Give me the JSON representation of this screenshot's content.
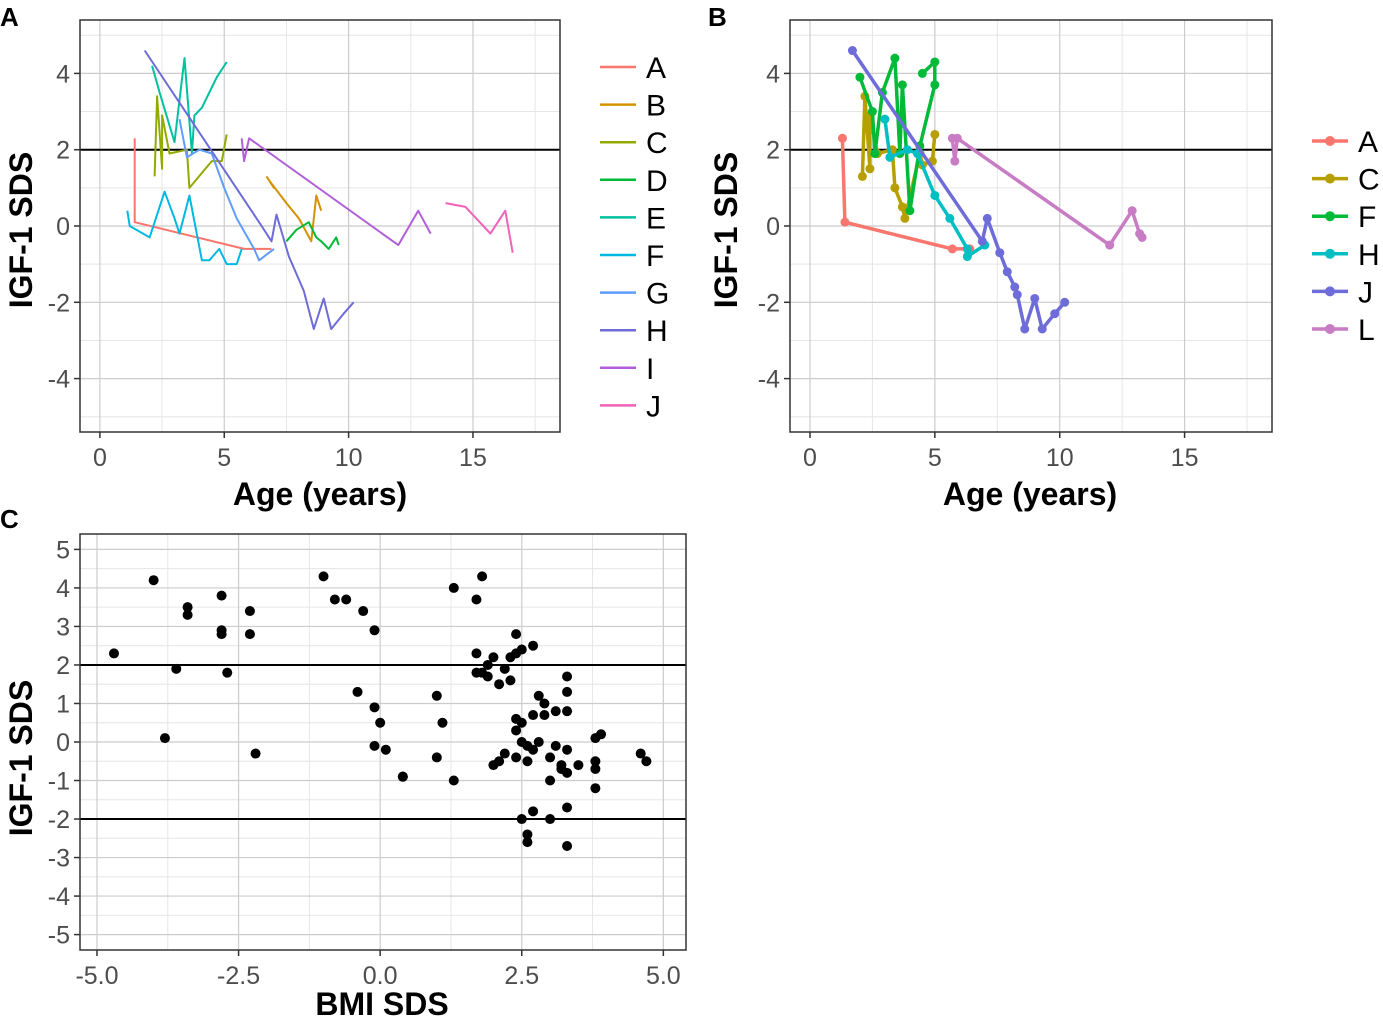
{
  "chart_data": [
    {
      "panel": "A",
      "type": "line",
      "xlabel": "Age (years)",
      "ylabel": "IGF-1 SDS",
      "xlim": [
        -0.8,
        18.5
      ],
      "ylim": [
        -5.4,
        5.4
      ],
      "xticks": [
        0,
        5,
        10,
        15
      ],
      "yticks": [
        -4,
        -2,
        0,
        2,
        4
      ],
      "grid": true,
      "hlines": [
        2
      ],
      "legend": "right",
      "series": [
        {
          "name": "A",
          "color": "#F8766D",
          "points": [
            [
              1.4,
              2.3
            ],
            [
              1.4,
              0.1
            ],
            [
              5.8,
              -0.6
            ],
            [
              6.9,
              -0.6
            ]
          ]
        },
        {
          "name": "B",
          "color": "#D39200",
          "points": [
            [
              6.7,
              1.3
            ],
            [
              7.0,
              1.0
            ],
            [
              6.8,
              1.2
            ],
            [
              7.5,
              0.6
            ],
            [
              8.0,
              0.2
            ],
            [
              8.5,
              -0.4
            ],
            [
              8.7,
              0.8
            ],
            [
              8.9,
              0.4
            ]
          ]
        },
        {
          "name": "C",
          "color": "#93AA00",
          "points": [
            [
              2.2,
              1.3
            ],
            [
              2.3,
              3.4
            ],
            [
              2.5,
              1.5
            ],
            [
              2.5,
              2.9
            ],
            [
              2.8,
              1.9
            ],
            [
              3.5,
              2.0
            ],
            [
              3.6,
              1.0
            ],
            [
              4.5,
              1.7
            ],
            [
              4.9,
              1.7
            ],
            [
              5.1,
              2.4
            ]
          ]
        },
        {
          "name": "D",
          "color": "#00BA38",
          "points": [
            [
              7.5,
              -0.4
            ],
            [
              7.9,
              -0.1
            ],
            [
              8.4,
              0.1
            ],
            [
              8.7,
              -0.3
            ],
            [
              8.9,
              -0.4
            ],
            [
              9.2,
              -0.6
            ],
            [
              9.5,
              -0.3
            ],
            [
              9.6,
              -0.5
            ]
          ]
        },
        {
          "name": "E",
          "color": "#00C19F",
          "points": [
            [
              2.1,
              4.2
            ],
            [
              2.4,
              3.5
            ],
            [
              3.0,
              2.2
            ],
            [
              3.4,
              4.4
            ],
            [
              3.7,
              1.9
            ],
            [
              3.8,
              2.9
            ],
            [
              4.1,
              3.1
            ],
            [
              4.7,
              3.9
            ],
            [
              5.1,
              4.3
            ]
          ]
        },
        {
          "name": "F",
          "color": "#00B9E3",
          "points": [
            [
              1.1,
              0.4
            ],
            [
              1.2,
              0.0
            ],
            [
              2.0,
              -0.3
            ],
            [
              2.6,
              0.9
            ],
            [
              3.0,
              0.2
            ],
            [
              3.2,
              -0.2
            ],
            [
              3.6,
              0.8
            ],
            [
              4.1,
              -0.9
            ],
            [
              4.4,
              -0.9
            ],
            [
              4.8,
              -0.6
            ],
            [
              5.1,
              -1.0
            ],
            [
              5.5,
              -1.0
            ],
            [
              5.7,
              -0.6
            ]
          ]
        },
        {
          "name": "G",
          "color": "#619CFF",
          "points": [
            [
              3.2,
              2.8
            ],
            [
              3.5,
              1.8
            ],
            [
              4.0,
              2.0
            ],
            [
              4.5,
              1.9
            ],
            [
              5.0,
              1.0
            ],
            [
              5.5,
              0.2
            ],
            [
              6.2,
              -0.6
            ],
            [
              6.4,
              -0.9
            ],
            [
              7.0,
              -0.6
            ]
          ]
        },
        {
          "name": "H",
          "color": "#6E6CD8",
          "points": [
            [
              1.8,
              4.6
            ],
            [
              6.5,
              0.0
            ],
            [
              6.9,
              -0.4
            ],
            [
              7.1,
              0.3
            ],
            [
              7.6,
              -0.8
            ],
            [
              8.2,
              -1.7
            ],
            [
              8.6,
              -2.7
            ],
            [
              9.0,
              -1.9
            ],
            [
              9.3,
              -2.7
            ],
            [
              9.8,
              -2.3
            ],
            [
              10.2,
              -2.0
            ]
          ]
        },
        {
          "name": "I",
          "color": "#B15FD9",
          "points": [
            [
              5.7,
              2.3
            ],
            [
              5.8,
              1.7
            ],
            [
              6.0,
              2.3
            ],
            [
              12.0,
              -0.5
            ],
            [
              12.8,
              0.4
            ],
            [
              13.3,
              -0.2
            ]
          ]
        },
        {
          "name": "J",
          "color": "#F162B8",
          "points": [
            [
              13.9,
              0.6
            ],
            [
              14.7,
              0.5
            ],
            [
              15.7,
              -0.2
            ],
            [
              16.3,
              0.4
            ],
            [
              16.6,
              -0.7
            ]
          ]
        }
      ]
    },
    {
      "panel": "B",
      "type": "line",
      "xlabel": "Age (years)",
      "ylabel": "IGF-1 SDS",
      "xlim": [
        -0.8,
        18.5
      ],
      "ylim": [
        -5.4,
        5.4
      ],
      "xticks": [
        0,
        5,
        10,
        15
      ],
      "yticks": [
        -4,
        -2,
        0,
        2,
        4
      ],
      "grid": true,
      "hlines": [
        2
      ],
      "legend": "right",
      "markers": true,
      "series": [
        {
          "name": "A",
          "color": "#F8766D",
          "points": [
            [
              1.3,
              2.3
            ],
            [
              1.4,
              0.1
            ],
            [
              5.7,
              -0.6
            ],
            [
              6.4,
              -0.6
            ]
          ]
        },
        {
          "name": "C",
          "color": "#B79F00",
          "points": [
            [
              2.1,
              1.3
            ],
            [
              2.2,
              3.4
            ],
            [
              2.4,
              1.5
            ],
            [
              2.4,
              2.9
            ],
            [
              2.7,
              1.9
            ],
            [
              3.3,
              2.0
            ],
            [
              3.4,
              1.0
            ],
            [
              3.7,
              0.5
            ],
            [
              3.8,
              0.2
            ],
            [
              4.4,
              1.9
            ],
            [
              4.5,
              1.6
            ],
            [
              4.9,
              1.7
            ],
            [
              5.0,
              2.4
            ]
          ]
        },
        {
          "name": "F",
          "color": "#00BA38",
          "points": [
            [
              2.0,
              3.9
            ],
            [
              2.5,
              3.0
            ],
            [
              2.6,
              1.9
            ],
            [
              2.9,
              3.5
            ],
            [
              3.4,
              4.4
            ],
            [
              3.6,
              1.9
            ],
            [
              3.7,
              3.7
            ],
            [
              4.0,
              0.4
            ],
            [
              4.4,
              2.1
            ],
            [
              5.0,
              3.7
            ],
            [
              5.0,
              4.3
            ],
            [
              4.5,
              4.0
            ]
          ]
        },
        {
          "name": "H",
          "color": "#00BFC4",
          "points": [
            [
              3.0,
              2.8
            ],
            [
              3.2,
              1.8
            ],
            [
              3.9,
              2.0
            ],
            [
              4.3,
              1.9
            ],
            [
              5.0,
              0.8
            ],
            [
              5.6,
              0.2
            ],
            [
              6.3,
              -0.6
            ],
            [
              6.3,
              -0.8
            ],
            [
              7.0,
              -0.5
            ]
          ]
        },
        {
          "name": "J",
          "color": "#6E6CD8",
          "points": [
            [
              1.7,
              4.6
            ],
            [
              6.9,
              -0.4
            ],
            [
              7.1,
              0.2
            ],
            [
              7.6,
              -0.7
            ],
            [
              7.9,
              -1.2
            ],
            [
              8.2,
              -1.6
            ],
            [
              8.3,
              -1.8
            ],
            [
              8.6,
              -2.7
            ],
            [
              9.0,
              -1.9
            ],
            [
              9.3,
              -2.7
            ],
            [
              9.8,
              -2.3
            ],
            [
              10.2,
              -2.0
            ]
          ]
        },
        {
          "name": "L",
          "color": "#C77CC4",
          "points": [
            [
              5.7,
              2.3
            ],
            [
              5.8,
              1.7
            ],
            [
              5.9,
              2.3
            ],
            [
              12.0,
              -0.5
            ],
            [
              12.9,
              0.4
            ],
            [
              13.2,
              -0.2
            ],
            [
              13.3,
              -0.3
            ]
          ]
        }
      ]
    },
    {
      "panel": "C",
      "type": "scatter",
      "xlabel": "BMI SDS",
      "ylabel": "IGF-1 SDS",
      "xlim": [
        -5.3,
        5.4
      ],
      "ylim": [
        -5.4,
        5.4
      ],
      "xticks": [
        -5.0,
        -2.5,
        0.0,
        2.5,
        5.0
      ],
      "xticklabels": [
        "-5.0",
        "-2.5",
        "0.0",
        "2.5",
        "5.0"
      ],
      "yticks": [
        -5,
        -4,
        -3,
        -2,
        -1,
        0,
        1,
        2,
        3,
        4,
        5
      ],
      "grid": true,
      "hlines": [
        2,
        -2
      ],
      "points": [
        [
          -4.7,
          2.3
        ],
        [
          -4.0,
          4.2
        ],
        [
          -3.8,
          0.1
        ],
        [
          -3.6,
          1.9
        ],
        [
          -3.4,
          3.5
        ],
        [
          -3.4,
          3.3
        ],
        [
          -2.8,
          3.8
        ],
        [
          -2.8,
          2.9
        ],
        [
          -2.8,
          2.8
        ],
        [
          -2.7,
          1.8
        ],
        [
          -2.3,
          3.4
        ],
        [
          -2.3,
          2.8
        ],
        [
          -2.2,
          -0.3
        ],
        [
          -1.0,
          4.3
        ],
        [
          -0.8,
          3.7
        ],
        [
          -0.6,
          3.7
        ],
        [
          -0.4,
          1.3
        ],
        [
          -0.3,
          3.4
        ],
        [
          -0.1,
          2.9
        ],
        [
          -0.1,
          0.9
        ],
        [
          0.0,
          0.5
        ],
        [
          -0.1,
          -0.1
        ],
        [
          0.1,
          -0.2
        ],
        [
          0.4,
          -0.9
        ],
        [
          0.4,
          -0.9
        ],
        [
          1.0,
          1.2
        ],
        [
          1.1,
          0.5
        ],
        [
          1.0,
          -0.4
        ],
        [
          1.3,
          -1.0
        ],
        [
          1.3,
          4.0
        ],
        [
          1.8,
          4.3
        ],
        [
          1.7,
          3.7
        ],
        [
          1.7,
          2.3
        ],
        [
          1.7,
          1.8
        ],
        [
          1.8,
          1.8
        ],
        [
          1.9,
          1.7
        ],
        [
          1.9,
          2.0
        ],
        [
          2.0,
          2.2
        ],
        [
          2.1,
          1.5
        ],
        [
          2.0,
          -0.6
        ],
        [
          2.1,
          -0.5
        ],
        [
          2.2,
          1.9
        ],
        [
          2.2,
          -0.3
        ],
        [
          2.3,
          1.6
        ],
        [
          2.3,
          2.2
        ],
        [
          2.4,
          2.8
        ],
        [
          2.4,
          2.3
        ],
        [
          2.4,
          0.6
        ],
        [
          2.4,
          0.3
        ],
        [
          2.4,
          -0.4
        ],
        [
          2.5,
          2.4
        ],
        [
          2.5,
          0.5
        ],
        [
          2.5,
          0.0
        ],
        [
          2.6,
          -0.1
        ],
        [
          2.6,
          -0.5
        ],
        [
          2.7,
          -0.2
        ],
        [
          2.7,
          0.7
        ],
        [
          2.7,
          2.5
        ],
        [
          2.8,
          1.2
        ],
        [
          2.8,
          0.0
        ],
        [
          2.9,
          0.7
        ],
        [
          2.9,
          1.0
        ],
        [
          3.0,
          -0.4
        ],
        [
          3.0,
          -1.0
        ],
        [
          3.0,
          -2.0
        ],
        [
          3.1,
          0.8
        ],
        [
          3.1,
          -0.1
        ],
        [
          3.2,
          -0.6
        ],
        [
          3.2,
          -0.7
        ],
        [
          3.3,
          1.7
        ],
        [
          3.3,
          1.3
        ],
        [
          3.3,
          0.8
        ],
        [
          3.3,
          -0.2
        ],
        [
          3.3,
          -0.8
        ],
        [
          3.3,
          -1.7
        ],
        [
          3.3,
          -2.7
        ],
        [
          2.5,
          -2.0
        ],
        [
          2.6,
          -2.4
        ],
        [
          2.6,
          -2.6
        ],
        [
          2.7,
          -1.8
        ],
        [
          3.5,
          -0.6
        ],
        [
          3.8,
          0.1
        ],
        [
          3.9,
          0.2
        ],
        [
          3.8,
          -0.5
        ],
        [
          3.8,
          -0.7
        ],
        [
          3.8,
          -1.2
        ],
        [
          4.6,
          -0.3
        ],
        [
          4.7,
          -0.5
        ]
      ]
    }
  ],
  "panel_labels": [
    "A",
    "B",
    "C"
  ]
}
